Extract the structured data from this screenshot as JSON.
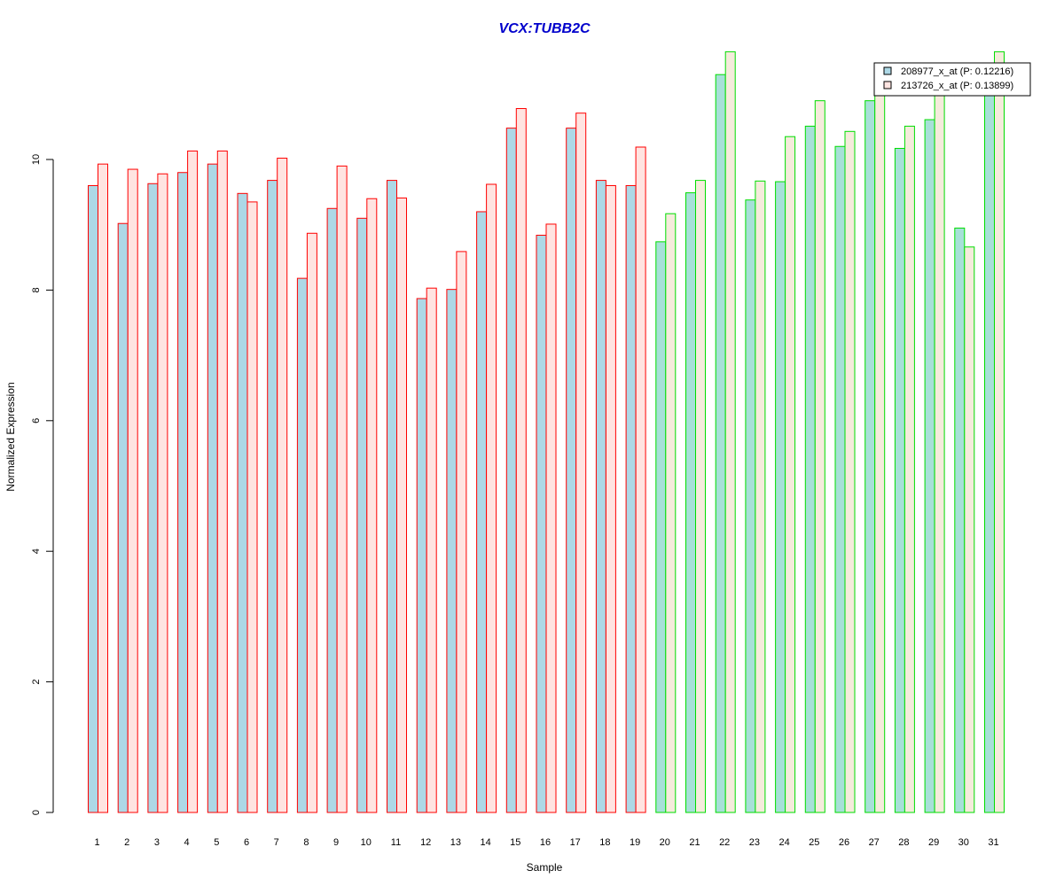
{
  "chart_data": {
    "type": "bar",
    "title": "VCX:TUBB2C",
    "xlabel": "Sample",
    "ylabel": "Normalized Expression",
    "ylim": [
      0,
      11.7
    ],
    "yticks": [
      0,
      2,
      4,
      6,
      8,
      10
    ],
    "categories": [
      "1",
      "2",
      "3",
      "4",
      "5",
      "6",
      "7",
      "8",
      "9",
      "10",
      "11",
      "12",
      "13",
      "14",
      "15",
      "16",
      "17",
      "18",
      "19",
      "20",
      "21",
      "22",
      "23",
      "24",
      "25",
      "26",
      "27",
      "28",
      "29",
      "30",
      "31"
    ],
    "groups": [
      {
        "samples": [
          "1",
          "2",
          "3",
          "4",
          "5",
          "6",
          "7",
          "8",
          "9",
          "10",
          "11",
          "12",
          "13",
          "14",
          "15",
          "16",
          "17",
          "18",
          "19"
        ],
        "border_color": "#FF0000"
      },
      {
        "samples": [
          "20",
          "21",
          "22",
          "23",
          "24",
          "25",
          "26",
          "27",
          "28",
          "29",
          "30",
          "31"
        ],
        "border_color": "#00DD00"
      }
    ],
    "series": [
      {
        "name": "208977_x_at (P: 0.12216)",
        "fill_colors": {
          "group1": "#ADD8E6",
          "group2": "#A7E0D8"
        },
        "values": [
          9.6,
          9.02,
          9.63,
          9.8,
          9.93,
          9.48,
          9.68,
          8.18,
          9.25,
          9.1,
          9.68,
          7.87,
          8.01,
          9.2,
          10.48,
          8.84,
          10.48,
          9.68,
          9.6,
          8.74,
          9.49,
          11.3,
          9.38,
          9.66,
          10.51,
          10.2,
          10.9,
          10.17,
          10.61,
          8.95,
          11.0
        ]
      },
      {
        "name": "213726_x_at (P: 0.13899)",
        "fill_colors": {
          "group1": "#FFE4E1",
          "group2": "#F5EBDC"
        },
        "values": [
          9.93,
          9.85,
          9.78,
          10.13,
          10.13,
          9.35,
          10.02,
          8.87,
          9.9,
          9.4,
          9.41,
          8.03,
          8.59,
          9.62,
          10.78,
          9.01,
          10.71,
          9.6,
          10.19,
          9.17,
          9.68,
          11.65,
          9.67,
          10.35,
          10.9,
          10.43,
          11.3,
          10.51,
          11.0,
          8.66,
          11.65
        ]
      }
    ],
    "legend": {
      "position": "top-right",
      "items": [
        {
          "label": "208977_x_at (P: 0.12216)",
          "swatch": "#ADD8E6"
        },
        {
          "label": "213726_x_at (P: 0.13899)",
          "swatch": "#FFE4E1"
        }
      ]
    },
    "grid": false
  }
}
